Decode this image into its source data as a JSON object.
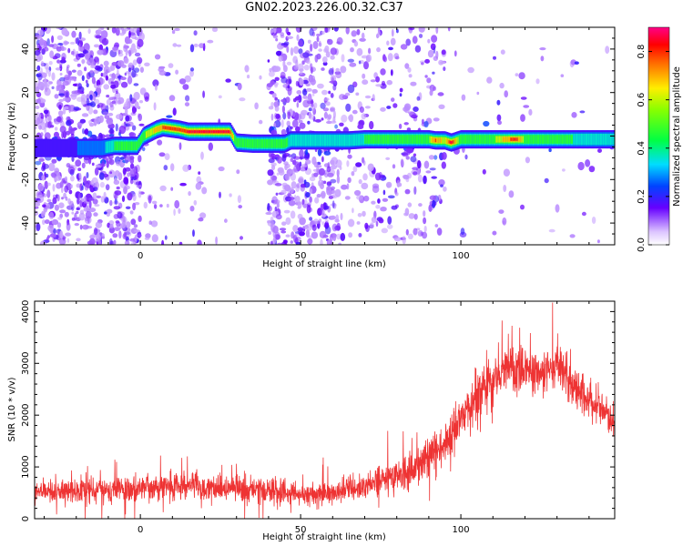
{
  "title": "GN02.2023.226.00.32.C37",
  "chart_data": [
    {
      "type": "heatmap",
      "xlabel": "Height of straight line (km)",
      "ylabel": "Frequency (Hz)",
      "xlim": [
        -33,
        148
      ],
      "ylim": [
        -50,
        50
      ],
      "x_ticks": [
        0,
        50,
        100
      ],
      "y_ticks": [
        -40,
        -20,
        0,
        20,
        40
      ],
      "colorbar": {
        "label": "Normalized spectral amplitude",
        "range": [
          0,
          0.9
        ],
        "ticks": [
          0.0,
          0.2,
          0.4,
          0.6,
          0.8
        ]
      },
      "trace": {
        "x": [
          -33,
          -20,
          -12,
          -8,
          -1,
          1,
          3,
          5,
          7,
          12,
          15,
          20,
          28,
          30,
          35,
          45,
          47,
          55,
          65,
          70,
          75,
          85,
          90,
          92,
          95,
          97,
          100,
          110,
          117,
          120,
          125,
          135,
          148
        ],
        "frequency": [
          -5.5,
          -5.5,
          -5.5,
          -4.5,
          -4.5,
          0,
          1.5,
          3,
          4,
          3,
          2,
          2,
          2,
          -3,
          -3.5,
          -3.5,
          -2,
          -2,
          -2,
          -1.5,
          -1.5,
          -1.5,
          -1.5,
          -2,
          -2,
          -3,
          -1.5,
          -1.5,
          -1.5,
          -1.5,
          -1.5,
          -1.5,
          -1.5
        ],
        "amplitude": [
          0.25,
          0.25,
          0.3,
          0.45,
          0.45,
          0.55,
          0.65,
          0.7,
          0.78,
          0.8,
          0.85,
          0.9,
          0.85,
          0.45,
          0.55,
          0.5,
          0.4,
          0.35,
          0.4,
          0.45,
          0.45,
          0.5,
          0.55,
          0.8,
          0.6,
          0.9,
          0.5,
          0.55,
          0.85,
          0.55,
          0.5,
          0.45,
          0.4
        ]
      },
      "grid": false
    },
    {
      "type": "line",
      "xlabel": "Height of straight line (km)",
      "ylabel": "SNR (10 * v/v)",
      "xlim": [
        -33,
        148
      ],
      "ylim": [
        0,
        4200
      ],
      "x_ticks": [
        0,
        50,
        100
      ],
      "y_ticks": [
        0,
        1000,
        2000,
        3000,
        4000
      ],
      "series_color": "#ee3333",
      "envelope": {
        "x": [
          -33,
          -25,
          -15,
          -5,
          5,
          15,
          25,
          35,
          45,
          50,
          55,
          60,
          65,
          70,
          75,
          80,
          85,
          90,
          95,
          100,
          105,
          110,
          115,
          120,
          125,
          130,
          135,
          140,
          145,
          148
        ],
        "mean": [
          500,
          520,
          550,
          570,
          620,
          620,
          580,
          550,
          520,
          470,
          470,
          500,
          560,
          650,
          750,
          850,
          950,
          1150,
          1450,
          1900,
          2350,
          2700,
          2950,
          2900,
          2800,
          2900,
          2600,
          2300,
          2050,
          1950
        ],
        "spread": [
          400,
          420,
          450,
          460,
          480,
          480,
          470,
          450,
          420,
          400,
          400,
          420,
          450,
          500,
          550,
          600,
          650,
          700,
          750,
          800,
          850,
          850,
          850,
          850,
          850,
          900,
          800,
          700,
          650,
          600
        ]
      },
      "grid": false
    }
  ]
}
